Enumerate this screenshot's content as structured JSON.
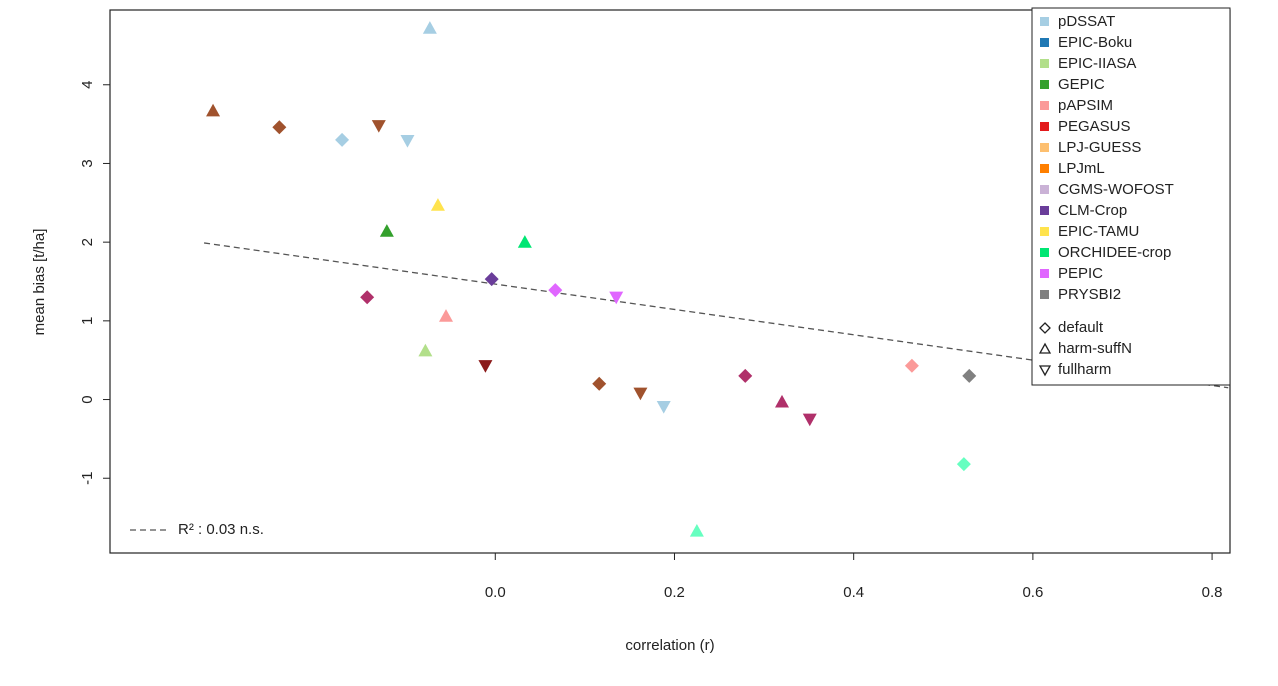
{
  "chart_data": {
    "type": "scatter",
    "x_label": "correlation (r)",
    "y_label": "mean bias [t/ha]",
    "xlim": [
      -0.43,
      0.82
    ],
    "ylim": [
      -1.95,
      4.95
    ],
    "xticks": [
      {
        "value": 0,
        "label": "0.0"
      },
      0.2,
      0.4,
      0.6,
      0.8
    ],
    "yticks": [
      -1,
      0,
      1,
      2,
      3,
      4
    ],
    "markers": [
      {
        "label": "default",
        "shape": "diamond"
      },
      {
        "label": "harm-suffN",
        "shape": "triangle"
      },
      {
        "label": "fullharm",
        "shape": "down-triangle"
      }
    ],
    "series": [
      {
        "name": "pDSSAT",
        "color": "#a6cee3",
        "x": [
          -0.073,
          -0.171,
          -0.098,
          0.188
        ],
        "values": [
          4.72,
          3.3,
          3.29,
          -0.09
        ],
        "shapes": [
          1,
          0,
          2,
          2
        ]
      },
      {
        "name": "EPIC-Boku",
        "color": "#1f78b4",
        "x": [],
        "values": [],
        "shapes": []
      },
      {
        "name": "EPIC-IIASA",
        "color": "#b2df8a",
        "x": [
          -0.078
        ],
        "values": [
          0.62
        ],
        "shapes": [
          1
        ]
      },
      {
        "name": "GEPIC",
        "color": "#33a02c",
        "x": [
          -0.121
        ],
        "values": [
          2.14
        ],
        "shapes": [
          1
        ]
      },
      {
        "name": "pAPSIM",
        "color": "#fb9a99",
        "x": [
          -0.055,
          0.465
        ],
        "values": [
          1.06,
          0.43
        ],
        "shapes": [
          1,
          0
        ]
      },
      {
        "name": "PEGASUS",
        "color": "#e31a1c",
        "x": [],
        "values": [],
        "shapes": []
      },
      {
        "name": "LPJ-GUESS",
        "color": "#fdbf6f",
        "x": [],
        "values": [],
        "shapes": []
      },
      {
        "name": "LPJmL",
        "color": "#ff7f00",
        "x": [],
        "values": [],
        "shapes": []
      },
      {
        "name": "CGMS-WOFOST",
        "color": "#cab2d6",
        "x": [],
        "values": [],
        "shapes": []
      },
      {
        "name": "CLM-Crop",
        "color": "#6a3d9a",
        "x": [
          -0.004
        ],
        "values": [
          1.53
        ],
        "shapes": [
          0
        ]
      },
      {
        "name": "EPIC-TAMU",
        "color": "#ffe34d",
        "x": [
          -0.064
        ],
        "values": [
          2.47
        ],
        "shapes": [
          1
        ]
      },
      {
        "name": "ORCHIDEE-crop",
        "color": "#00e673",
        "x": [
          0.033
        ],
        "values": [
          2.0
        ],
        "shapes": [
          1
        ]
      },
      {
        "name": "PEPIC",
        "color": "#e066ff",
        "x": [
          0.067,
          0.135
        ],
        "values": [
          1.39,
          1.3
        ],
        "shapes": [
          0,
          2
        ]
      },
      {
        "name": "PRYSBI2",
        "color": "#808080",
        "x": [
          0.529
        ],
        "values": [
          0.3
        ],
        "shapes": [
          0
        ]
      },
      {
        "color": "#a0522d",
        "x": [
          -0.315,
          -0.241,
          -0.13,
          0.116,
          0.162
        ],
        "values": [
          3.67,
          3.46,
          3.48,
          0.2,
          0.08
        ],
        "shapes": [
          1,
          0,
          2,
          0,
          2
        ]
      },
      {
        "color": "#b0306a",
        "x": [
          -0.143,
          0.279,
          0.32,
          0.351
        ],
        "values": [
          1.3,
          0.3,
          -0.03,
          -0.25
        ],
        "shapes": [
          0,
          0,
          1,
          2
        ]
      },
      {
        "color": "#8b1a1a",
        "x": [
          -0.011
        ],
        "values": [
          0.43
        ],
        "shapes": [
          2
        ]
      },
      {
        "color": "#66ffc0",
        "x": [
          0.225,
          0.523
        ],
        "values": [
          -1.67,
          -0.82
        ],
        "shapes": [
          1,
          0
        ]
      }
    ],
    "fit": {
      "x": [
        -0.325,
        0.818
      ],
      "y": [
        1.99,
        0.15
      ],
      "label": "R² : 0.03 n.s."
    }
  }
}
